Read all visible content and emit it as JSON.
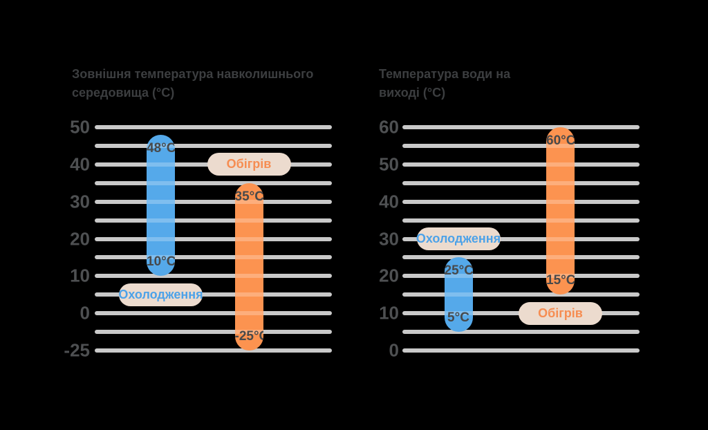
{
  "figure": {
    "background": "#000000",
    "description_labels": {
      "cooling": "Охолодження",
      "heating": "Обігрів"
    }
  },
  "colors": {
    "cooling_bar": "#55a9ea",
    "heating_bar": "#fc9350",
    "badge_bg": "#ecdbce",
    "gridline": "#c9c9c9",
    "tick_label": "#4e5052",
    "value_label": "#47494b",
    "title_text": "#3c3e40",
    "cooling_badge_text": "#4da2e8",
    "heating_badge_text": "#f68d52"
  },
  "chart_data": [
    {
      "type": "range_bar",
      "title": "Зовнішня температура навколишнього середовища (°C)",
      "title_lines": [
        "Зовнішня температура навколишнього",
        "середовища (°C)"
      ],
      "axis_ticks": [
        50,
        40,
        30,
        20,
        10,
        0,
        -25
      ],
      "gridline_count": 13,
      "grid": true,
      "series": [
        {
          "name": "Охолодження",
          "role": "cooling",
          "color": "#55a9ea",
          "badge_text_color": "#4da2e8",
          "from": 10,
          "to": 48,
          "top_label": "48°C",
          "bottom_label": "10°C",
          "badge_level": 5
        },
        {
          "name": "Обігрів",
          "role": "heating",
          "color": "#fc9350",
          "badge_text_color": "#f68d52",
          "from": -25,
          "to": 35,
          "top_label": "35°C",
          "bottom_label": "-25°C",
          "badge_level": 40
        }
      ]
    },
    {
      "type": "range_bar",
      "title": "Температура води на виході (°C)",
      "title_lines": [
        "Температура води на",
        "виході (°C)"
      ],
      "axis_ticks": [
        60,
        50,
        40,
        30,
        20,
        10,
        0
      ],
      "gridline_count": 13,
      "grid": true,
      "series": [
        {
          "name": "Охолодження",
          "role": "cooling",
          "color": "#55a9ea",
          "badge_text_color": "#4da2e8",
          "from": 5,
          "to": 25,
          "top_label": "25°C",
          "bottom_label": "5°C",
          "badge_level": 30
        },
        {
          "name": "Обігрів",
          "role": "heating",
          "color": "#fc9350",
          "badge_text_color": "#f68d52",
          "from": 15,
          "to": 60,
          "top_label": "60°C",
          "bottom_label": "15°C",
          "badge_level": 10
        }
      ]
    }
  ]
}
